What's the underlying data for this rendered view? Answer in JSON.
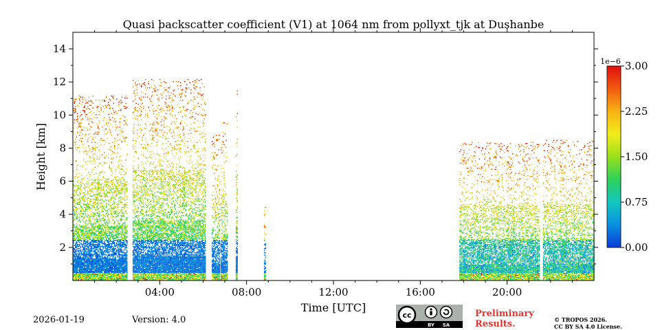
{
  "chart_data": {
    "type": "heatmap",
    "title": "Quasi backscatter coefficient (V1) at 1064 nm from pollyxt_tjk at Dushanbe",
    "xlabel": "Time [UTC]",
    "ylabel": "Height [km]",
    "xlim": [
      0,
      24
    ],
    "ylim": [
      0,
      15
    ],
    "x_ticks": [
      4,
      8,
      12,
      16,
      20
    ],
    "x_tick_labels": [
      "04:00",
      "08:00",
      "12:00",
      "16:00",
      "20:00"
    ],
    "y_ticks": [
      2,
      4,
      6,
      8,
      10,
      12,
      14
    ],
    "y_tick_labels": [
      "2",
      "4",
      "6",
      "8",
      "10",
      "12",
      "14"
    ],
    "colorbar": {
      "range": [
        0,
        3.0
      ],
      "ticks": [
        0,
        0.75,
        1.5,
        2.25,
        3.0
      ],
      "tick_labels": [
        "0.00",
        "0.75",
        "1.50",
        "2.25",
        "3.00"
      ],
      "exponent_label": "1e−6",
      "colormap": [
        "#0a3cd8",
        "#0a8fe0",
        "#13c8c0",
        "#2ed05a",
        "#9be01c",
        "#f2ec1c",
        "#f7b212",
        "#f25a10",
        "#e01010"
      ]
    },
    "measurement_segments": [
      {
        "start": 0.0,
        "end": 2.5,
        "top": 11.2
      },
      {
        "start": 2.75,
        "end": 6.1,
        "top": 12.2
      },
      {
        "start": 6.4,
        "end": 6.75,
        "top": 9.0
      },
      {
        "start": 6.8,
        "end": 7.1,
        "top": 9.6
      },
      {
        "start": 7.5,
        "end": 7.55,
        "top": 11.8
      },
      {
        "start": 8.8,
        "end": 8.85,
        "top": 4.6
      },
      {
        "start": 17.8,
        "end": 21.5,
        "top": 8.4
      },
      {
        "start": 21.65,
        "end": 24.0,
        "top": 8.5
      }
    ]
  },
  "footer": {
    "date": "2026-01-19",
    "version": "Version: 4.0",
    "preliminary_line1": "Preliminary",
    "preliminary_line2": "Results.",
    "copyright_line1": "© TROPOS 2026.",
    "copyright_line2": "CC BY SA 4.0 License.",
    "license_badge": {
      "cc": "cc",
      "by": "BY",
      "sa": "SA"
    }
  }
}
